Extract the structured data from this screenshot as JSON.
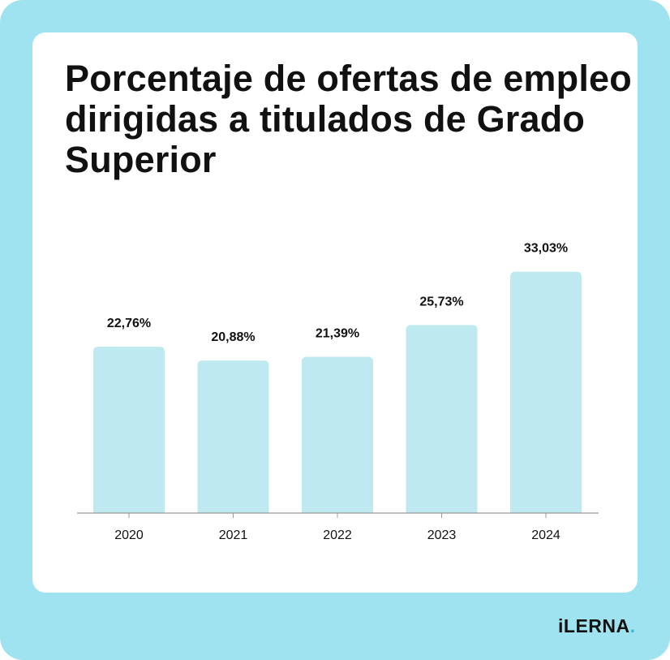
{
  "title": "Porcentaje de ofertas de empleo dirigidas a titulados de Grado Superior",
  "logo": {
    "text": "iLERNA",
    "dot": "."
  },
  "colors": {
    "background": "#a0e3f0",
    "bar": "#bfe9f0",
    "axis": "#999999"
  },
  "chart_data": {
    "type": "bar",
    "title": "Porcentaje de ofertas de empleo dirigidas a titulados de Grado Superior",
    "categories": [
      "2020",
      "2021",
      "2022",
      "2023",
      "2024"
    ],
    "values": [
      22.76,
      20.88,
      21.39,
      25.73,
      33.03
    ],
    "data_labels": [
      "22,76%",
      "20,88%",
      "21,39%",
      "25,73%",
      "33,03%"
    ],
    "xlabel": "",
    "ylabel": "",
    "ylim": [
      0,
      40
    ],
    "grid": false,
    "legend": "none"
  }
}
